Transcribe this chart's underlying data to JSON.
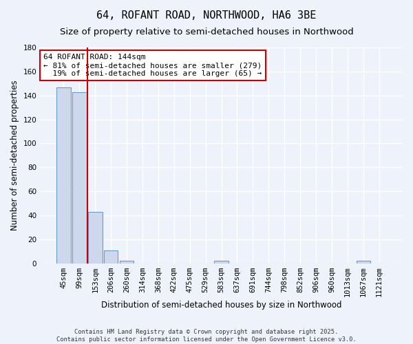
{
  "title": "64, ROFANT ROAD, NORTHWOOD, HA6 3BE",
  "subtitle": "Size of property relative to semi-detached houses in Northwood",
  "xlabel": "Distribution of semi-detached houses by size in Northwood",
  "ylabel": "Number of semi-detached properties",
  "categories": [
    "45sqm",
    "99sqm",
    "153sqm",
    "206sqm",
    "260sqm",
    "314sqm",
    "368sqm",
    "422sqm",
    "475sqm",
    "529sqm",
    "583sqm",
    "637sqm",
    "691sqm",
    "744sqm",
    "798sqm",
    "852sqm",
    "906sqm",
    "960sqm",
    "1013sqm",
    "1067sqm",
    "1121sqm"
  ],
  "values": [
    147,
    143,
    43,
    11,
    2,
    0,
    0,
    0,
    0,
    0,
    2,
    0,
    0,
    0,
    0,
    0,
    0,
    0,
    0,
    2,
    0
  ],
  "bar_color": "#cdd8ed",
  "bar_edge_color": "#6b9cc7",
  "red_line_index": 2,
  "red_line_color": "#cc0000",
  "annotation_line1": "64 ROFANT ROAD: 144sqm",
  "annotation_line2": "← 81% of semi-detached houses are smaller (279)",
  "annotation_line3": "  19% of semi-detached houses are larger (65) →",
  "annotation_box_color": "#ffffff",
  "annotation_box_edge": "#cc0000",
  "ylim": [
    0,
    180
  ],
  "yticks": [
    0,
    20,
    40,
    60,
    80,
    100,
    120,
    140,
    160,
    180
  ],
  "background_color": "#eef2fb",
  "grid_color": "#ffffff",
  "footer_line1": "Contains HM Land Registry data © Crown copyright and database right 2025.",
  "footer_line2": "Contains public sector information licensed under the Open Government Licence v3.0.",
  "title_fontsize": 11,
  "subtitle_fontsize": 9.5,
  "axis_label_fontsize": 8.5,
  "tick_fontsize": 7.5,
  "annotation_fontsize": 8
}
